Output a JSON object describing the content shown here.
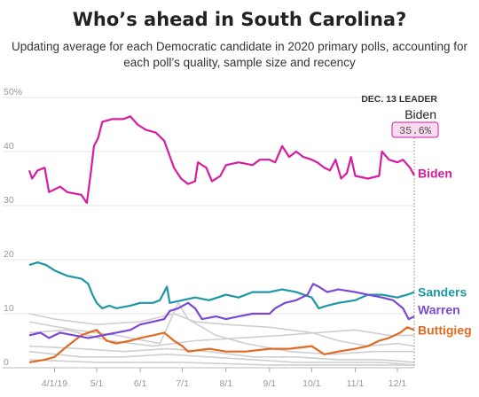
{
  "title": "Who’s ahead in South Carolina?",
  "subtitle": "Updating average for each Democratic candidate in 2020 primary polls, accounting for each poll’s quality, sample size and recency",
  "leader": {
    "heading": "DEC. 13 LEADER",
    "name": "Biden",
    "value": "35.6%"
  },
  "colors": {
    "biden": "#d61c9f",
    "sanders": "#1d96a6",
    "warren": "#7a47d6",
    "buttigieg": "#e06a22",
    "others": "#cfcfcf",
    "grid": "#e4e4e4"
  },
  "chart_data": {
    "type": "line",
    "x_ticks": [
      "4/1/19",
      "5/1",
      "6/1",
      "7/1",
      "8/1",
      "9/1",
      "10/1",
      "11/1",
      "12/1"
    ],
    "y_ticks": [
      "0",
      "10",
      "20",
      "30",
      "40",
      "50%"
    ],
    "ylim": [
      0,
      50
    ],
    "xlim": [
      "2019-03-14",
      "2019-12-13"
    ],
    "grid": true,
    "series": [
      {
        "name": "Biden",
        "key": "biden",
        "points": [
          [
            "2019-03-14",
            36.5
          ],
          [
            "2019-03-16",
            35
          ],
          [
            "2019-03-20",
            36.5
          ],
          [
            "2019-03-25",
            37
          ],
          [
            "2019-03-28",
            32.5
          ],
          [
            "2019-04-05",
            33.5
          ],
          [
            "2019-04-10",
            32.5
          ],
          [
            "2019-04-20",
            32
          ],
          [
            "2019-04-24",
            30.5
          ],
          [
            "2019-04-27",
            36.5
          ],
          [
            "2019-04-29",
            41
          ],
          [
            "2019-05-02",
            42.5
          ],
          [
            "2019-05-05",
            45.5
          ],
          [
            "2019-05-12",
            46
          ],
          [
            "2019-05-20",
            46
          ],
          [
            "2019-05-25",
            46.5
          ],
          [
            "2019-05-30",
            45
          ],
          [
            "2019-06-05",
            44
          ],
          [
            "2019-06-12",
            43.5
          ],
          [
            "2019-06-18",
            42
          ],
          [
            "2019-06-25",
            37
          ],
          [
            "2019-06-30",
            35
          ],
          [
            "2019-07-05",
            34
          ],
          [
            "2019-07-10",
            34.5
          ],
          [
            "2019-07-12",
            38
          ],
          [
            "2019-07-18",
            37
          ],
          [
            "2019-07-22",
            34.5
          ],
          [
            "2019-07-28",
            35.5
          ],
          [
            "2019-08-01",
            37.5
          ],
          [
            "2019-08-10",
            38
          ],
          [
            "2019-08-20",
            37.5
          ],
          [
            "2019-08-25",
            38.5
          ],
          [
            "2019-09-01",
            38.5
          ],
          [
            "2019-09-05",
            38
          ],
          [
            "2019-09-10",
            41
          ],
          [
            "2019-09-15",
            39
          ],
          [
            "2019-09-20",
            40
          ],
          [
            "2019-09-25",
            39
          ],
          [
            "2019-10-01",
            38.5
          ],
          [
            "2019-10-05",
            38
          ],
          [
            "2019-10-10",
            37
          ],
          [
            "2019-10-14",
            36.5
          ],
          [
            "2019-10-18",
            38.5
          ],
          [
            "2019-10-22",
            35
          ],
          [
            "2019-10-26",
            36
          ],
          [
            "2019-10-29",
            39
          ],
          [
            "2019-11-01",
            35.5
          ],
          [
            "2019-11-10",
            35
          ],
          [
            "2019-11-18",
            35.5
          ],
          [
            "2019-11-20",
            40
          ],
          [
            "2019-11-25",
            38.5
          ],
          [
            "2019-12-01",
            38
          ],
          [
            "2019-12-05",
            38.5
          ],
          [
            "2019-12-10",
            37
          ],
          [
            "2019-12-13",
            35.6
          ]
        ]
      },
      {
        "name": "Sanders",
        "key": "sanders",
        "points": [
          [
            "2019-03-14",
            19
          ],
          [
            "2019-03-20",
            19.5
          ],
          [
            "2019-03-26",
            19
          ],
          [
            "2019-04-01",
            18
          ],
          [
            "2019-04-10",
            17
          ],
          [
            "2019-04-20",
            16.5
          ],
          [
            "2019-04-25",
            15.5
          ],
          [
            "2019-04-28",
            13.5
          ],
          [
            "2019-05-01",
            12
          ],
          [
            "2019-05-05",
            11
          ],
          [
            "2019-05-10",
            11.5
          ],
          [
            "2019-05-15",
            11
          ],
          [
            "2019-05-25",
            11.5
          ],
          [
            "2019-06-01",
            12
          ],
          [
            "2019-06-10",
            12
          ],
          [
            "2019-06-15",
            12.5
          ],
          [
            "2019-06-20",
            15
          ],
          [
            "2019-06-22",
            12
          ],
          [
            "2019-07-01",
            12.5
          ],
          [
            "2019-07-10",
            13
          ],
          [
            "2019-07-20",
            12.5
          ],
          [
            "2019-08-01",
            13.5
          ],
          [
            "2019-08-10",
            13
          ],
          [
            "2019-08-20",
            14
          ],
          [
            "2019-09-01",
            14
          ],
          [
            "2019-09-10",
            14.5
          ],
          [
            "2019-09-20",
            14
          ],
          [
            "2019-10-01",
            13
          ],
          [
            "2019-10-06",
            11
          ],
          [
            "2019-10-12",
            11.5
          ],
          [
            "2019-10-20",
            12
          ],
          [
            "2019-11-01",
            12.5
          ],
          [
            "2019-11-10",
            13.5
          ],
          [
            "2019-11-20",
            13.5
          ],
          [
            "2019-12-01",
            13
          ],
          [
            "2019-12-08",
            13.5
          ],
          [
            "2019-12-13",
            14
          ]
        ]
      },
      {
        "name": "Warren",
        "key": "warren",
        "points": [
          [
            "2019-03-14",
            6
          ],
          [
            "2019-03-22",
            6.5
          ],
          [
            "2019-03-28",
            5.5
          ],
          [
            "2019-04-05",
            6.5
          ],
          [
            "2019-04-15",
            6
          ],
          [
            "2019-04-25",
            5.5
          ],
          [
            "2019-05-05",
            6
          ],
          [
            "2019-05-15",
            6.5
          ],
          [
            "2019-05-25",
            7
          ],
          [
            "2019-06-01",
            8
          ],
          [
            "2019-06-10",
            8.5
          ],
          [
            "2019-06-18",
            9
          ],
          [
            "2019-06-22",
            10.5
          ],
          [
            "2019-06-28",
            11
          ],
          [
            "2019-07-05",
            12
          ],
          [
            "2019-07-10",
            11
          ],
          [
            "2019-07-15",
            9
          ],
          [
            "2019-07-25",
            9.5
          ],
          [
            "2019-08-01",
            9
          ],
          [
            "2019-08-10",
            9.5
          ],
          [
            "2019-08-20",
            10
          ],
          [
            "2019-09-01",
            10
          ],
          [
            "2019-09-05",
            11
          ],
          [
            "2019-09-12",
            12
          ],
          [
            "2019-09-20",
            12.5
          ],
          [
            "2019-09-28",
            13.5
          ],
          [
            "2019-10-02",
            15.5
          ],
          [
            "2019-10-06",
            15
          ],
          [
            "2019-10-12",
            14
          ],
          [
            "2019-10-20",
            14.5
          ],
          [
            "2019-11-01",
            14
          ],
          [
            "2019-11-10",
            13.5
          ],
          [
            "2019-11-20",
            13
          ],
          [
            "2019-11-28",
            12.5
          ],
          [
            "2019-12-05",
            11
          ],
          [
            "2019-12-09",
            9
          ],
          [
            "2019-12-13",
            9.5
          ]
        ]
      },
      {
        "name": "Buttigieg",
        "key": "buttigieg",
        "points": [
          [
            "2019-03-14",
            1
          ],
          [
            "2019-03-25",
            1.5
          ],
          [
            "2019-04-01",
            2
          ],
          [
            "2019-04-10",
            4
          ],
          [
            "2019-04-15",
            5
          ],
          [
            "2019-04-20",
            6
          ],
          [
            "2019-04-25",
            6.5
          ],
          [
            "2019-05-01",
            7
          ],
          [
            "2019-05-08",
            5
          ],
          [
            "2019-05-15",
            4.5
          ],
          [
            "2019-05-25",
            5
          ],
          [
            "2019-06-01",
            5.5
          ],
          [
            "2019-06-10",
            6
          ],
          [
            "2019-06-18",
            6.5
          ],
          [
            "2019-06-25",
            5
          ],
          [
            "2019-07-01",
            4
          ],
          [
            "2019-07-05",
            3
          ],
          [
            "2019-07-20",
            3.5
          ],
          [
            "2019-08-01",
            3
          ],
          [
            "2019-08-15",
            3
          ],
          [
            "2019-09-01",
            3.5
          ],
          [
            "2019-09-15",
            3.5
          ],
          [
            "2019-10-01",
            4
          ],
          [
            "2019-10-10",
            2.5
          ],
          [
            "2019-10-20",
            3
          ],
          [
            "2019-11-01",
            3.5
          ],
          [
            "2019-11-10",
            4
          ],
          [
            "2019-11-18",
            5
          ],
          [
            "2019-11-25",
            5.5
          ],
          [
            "2019-12-03",
            6.5
          ],
          [
            "2019-12-08",
            7.5
          ],
          [
            "2019-12-13",
            7
          ]
        ]
      }
    ],
    "others": [
      [
        [
          "2019-03-14",
          10
        ],
        [
          "2019-04-01",
          9
        ],
        [
          "2019-05-01",
          8
        ],
        [
          "2019-06-01",
          8.5
        ],
        [
          "2019-06-25",
          10
        ],
        [
          "2019-07-10",
          8.5
        ],
        [
          "2019-08-01",
          8
        ],
        [
          "2019-09-01",
          7.5
        ],
        [
          "2019-10-01",
          6.5
        ],
        [
          "2019-10-20",
          5
        ],
        [
          "2019-11-10",
          4
        ],
        [
          "2019-12-01",
          4.5
        ],
        [
          "2019-12-13",
          4
        ]
      ],
      [
        [
          "2019-03-14",
          8.5
        ],
        [
          "2019-04-15",
          7
        ],
        [
          "2019-05-15",
          6
        ],
        [
          "2019-06-15",
          4.5
        ],
        [
          "2019-06-28",
          12
        ],
        [
          "2019-07-05",
          9
        ],
        [
          "2019-07-25",
          6
        ],
        [
          "2019-08-15",
          4.5
        ],
        [
          "2019-09-15",
          3
        ],
        [
          "2019-10-15",
          2.5
        ],
        [
          "2019-11-15",
          3
        ],
        [
          "2019-12-13",
          3
        ]
      ],
      [
        [
          "2019-03-14",
          6.5
        ],
        [
          "2019-04-10",
          7
        ],
        [
          "2019-05-10",
          5
        ],
        [
          "2019-06-10",
          4
        ],
        [
          "2019-07-10",
          5
        ],
        [
          "2019-08-10",
          5.5
        ],
        [
          "2019-09-10",
          6
        ],
        [
          "2019-10-05",
          6.5
        ],
        [
          "2019-11-01",
          7
        ],
        [
          "2019-11-25",
          6
        ],
        [
          "2019-12-13",
          6
        ]
      ],
      [
        [
          "2019-03-14",
          4
        ],
        [
          "2019-04-20",
          3.5
        ],
        [
          "2019-05-20",
          3
        ],
        [
          "2019-06-20",
          3.5
        ],
        [
          "2019-07-20",
          3
        ],
        [
          "2019-08-20",
          2
        ],
        [
          "2019-09-20",
          2
        ],
        [
          "2019-10-20",
          1.5
        ],
        [
          "2019-11-20",
          1.5
        ],
        [
          "2019-12-13",
          1
        ]
      ],
      [
        [
          "2019-03-14",
          3
        ],
        [
          "2019-04-20",
          2
        ],
        [
          "2019-05-20",
          2
        ],
        [
          "2019-06-20",
          2.5
        ],
        [
          "2019-07-20",
          2
        ],
        [
          "2019-08-20",
          1.5
        ],
        [
          "2019-09-20",
          1
        ],
        [
          "2019-10-20",
          1
        ],
        [
          "2019-11-20",
          1
        ],
        [
          "2019-12-13",
          0.5
        ]
      ],
      [
        [
          "2019-03-14",
          1.5
        ],
        [
          "2019-05-01",
          1
        ],
        [
          "2019-07-01",
          1
        ],
        [
          "2019-09-01",
          0.5
        ],
        [
          "2019-11-01",
          0.5
        ],
        [
          "2019-12-13",
          0.5
        ]
      ]
    ]
  }
}
